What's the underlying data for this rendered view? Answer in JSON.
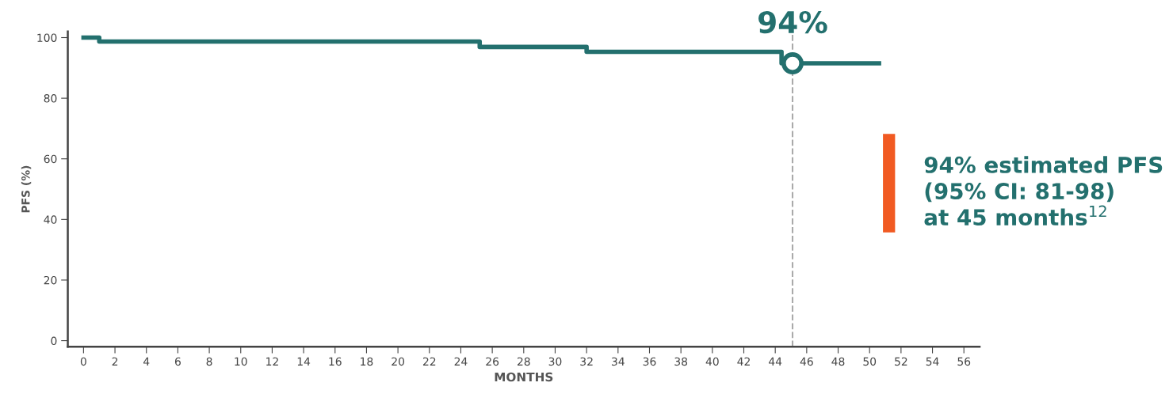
{
  "chart_data": {
    "type": "step",
    "xlabel": "MONTHS",
    "ylabel": "PFS (%)",
    "series": [
      {
        "color": "#23706e",
        "x": [
          0,
          1,
          25.2,
          32,
          44.4,
          50.6
        ],
        "values": [
          100,
          98.7,
          96.9,
          95.3,
          91.5,
          91.5
        ]
      },
      {
        "type": "scatter",
        "color": "#23706e",
        "marker": "circle",
        "x": [
          45.1
        ],
        "values": [
          91.5
        ]
      }
    ],
    "xlim": [
      -1,
      57
    ],
    "ylim": [
      -2,
      102
    ],
    "xticks": [
      0,
      2,
      4,
      6,
      8,
      10,
      12,
      14,
      16,
      18,
      20,
      22,
      24,
      26,
      28,
      30,
      32,
      34,
      36,
      38,
      40,
      42,
      44,
      46,
      48,
      50,
      52,
      54,
      56
    ],
    "yticks": [
      0,
      20,
      40,
      60,
      80,
      100
    ],
    "ref_lines": [
      {
        "axis": "x",
        "value": 45.1,
        "color": "#aaaaaa",
        "line_style": "dashed"
      }
    ],
    "annotations": [
      {
        "text": "94%",
        "x": 45.1,
        "y": 91.5
      },
      "94% estimated PFS\n(95% CI: 81-98)\nat 45 months$^{12}$"
    ],
    "grid": false
  }
}
